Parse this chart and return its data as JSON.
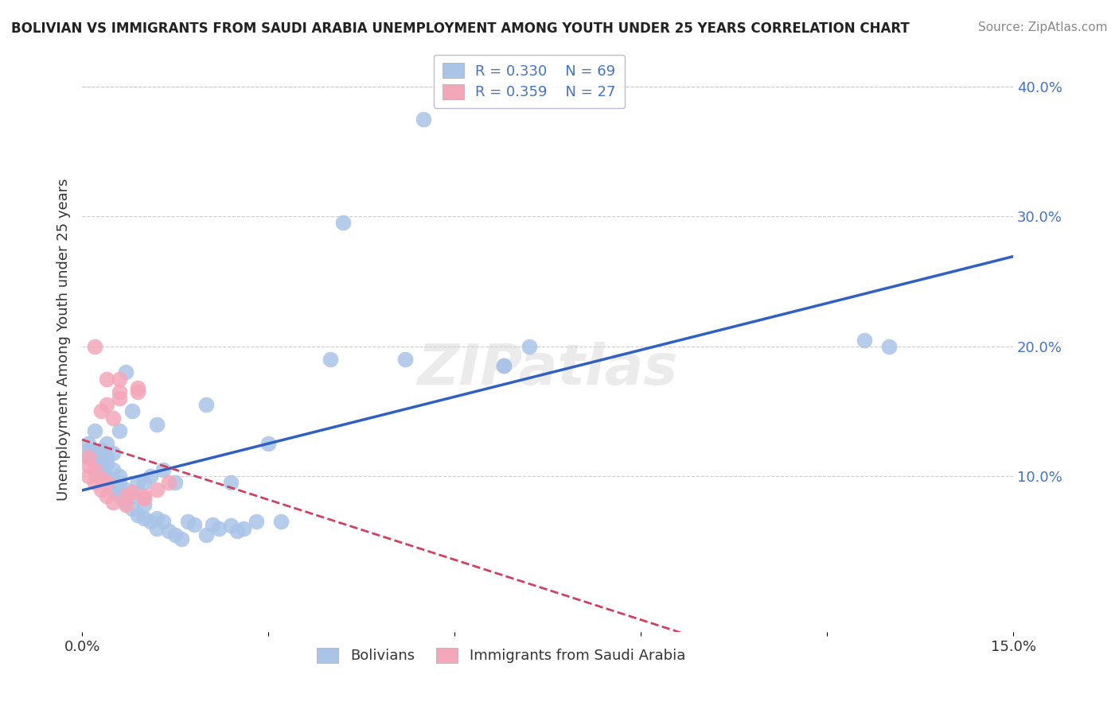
{
  "title": "BOLIVIAN VS IMMIGRANTS FROM SAUDI ARABIA UNEMPLOYMENT AMONG YOUTH UNDER 25 YEARS CORRELATION CHART",
  "source": "Source: ZipAtlas.com",
  "xlabel": "",
  "ylabel": "Unemployment Among Youth under 25 years",
  "xlim": [
    0.0,
    0.15
  ],
  "ylim": [
    -0.02,
    0.43
  ],
  "xticks": [
    0.0,
    0.03,
    0.06,
    0.09,
    0.12,
    0.15
  ],
  "xtick_labels": [
    "0.0%",
    "",
    "",
    "",
    "",
    "15.0%"
  ],
  "ytick_labels_right": [
    "10.0%",
    "20.0%",
    "30.0%",
    "40.0%"
  ],
  "ytick_vals_right": [
    0.1,
    0.2,
    0.3,
    0.4
  ],
  "R_bolivian": 0.33,
  "N_bolivian": 69,
  "R_saudi": 0.359,
  "N_saudi": 27,
  "blue_color": "#aac4e8",
  "pink_color": "#f4a7b9",
  "blue_line_color": "#3060c0",
  "pink_line_color": "#d04060",
  "watermark": "ZIPatlas",
  "bolivian_x": [
    0.001,
    0.001,
    0.001,
    0.002,
    0.002,
    0.002,
    0.002,
    0.003,
    0.003,
    0.003,
    0.003,
    0.003,
    0.004,
    0.004,
    0.004,
    0.004,
    0.004,
    0.005,
    0.005,
    0.005,
    0.005,
    0.006,
    0.006,
    0.006,
    0.006,
    0.007,
    0.007,
    0.007,
    0.008,
    0.008,
    0.008,
    0.009,
    0.009,
    0.01,
    0.01,
    0.01,
    0.011,
    0.011,
    0.012,
    0.012,
    0.012,
    0.013,
    0.013,
    0.014,
    0.015,
    0.015,
    0.016,
    0.017,
    0.018,
    0.02,
    0.02,
    0.021,
    0.022,
    0.024,
    0.024,
    0.025,
    0.026,
    0.028,
    0.03,
    0.032,
    0.04,
    0.042,
    0.052,
    0.055,
    0.068,
    0.068,
    0.072,
    0.126,
    0.13
  ],
  "bolivian_y": [
    0.115,
    0.12,
    0.125,
    0.11,
    0.112,
    0.118,
    0.135,
    0.1,
    0.105,
    0.108,
    0.115,
    0.12,
    0.095,
    0.1,
    0.11,
    0.115,
    0.125,
    0.09,
    0.095,
    0.105,
    0.118,
    0.085,
    0.095,
    0.1,
    0.135,
    0.08,
    0.09,
    0.18,
    0.075,
    0.085,
    0.15,
    0.07,
    0.095,
    0.068,
    0.078,
    0.095,
    0.065,
    0.1,
    0.06,
    0.068,
    0.14,
    0.065,
    0.105,
    0.058,
    0.055,
    0.095,
    0.052,
    0.065,
    0.063,
    0.055,
    0.155,
    0.063,
    0.06,
    0.062,
    0.095,
    0.058,
    0.06,
    0.065,
    0.125,
    0.065,
    0.19,
    0.295,
    0.19,
    0.375,
    0.185,
    0.185,
    0.2,
    0.205,
    0.2
  ],
  "saudi_x": [
    0.001,
    0.001,
    0.001,
    0.002,
    0.002,
    0.002,
    0.003,
    0.003,
    0.003,
    0.004,
    0.004,
    0.004,
    0.004,
    0.005,
    0.005,
    0.006,
    0.006,
    0.006,
    0.007,
    0.007,
    0.008,
    0.009,
    0.009,
    0.01,
    0.01,
    0.012,
    0.014
  ],
  "saudi_y": [
    0.1,
    0.108,
    0.115,
    0.095,
    0.105,
    0.2,
    0.09,
    0.098,
    0.15,
    0.085,
    0.095,
    0.155,
    0.175,
    0.08,
    0.145,
    0.16,
    0.165,
    0.175,
    0.078,
    0.085,
    0.088,
    0.165,
    0.168,
    0.083,
    0.085,
    0.09,
    0.095
  ]
}
